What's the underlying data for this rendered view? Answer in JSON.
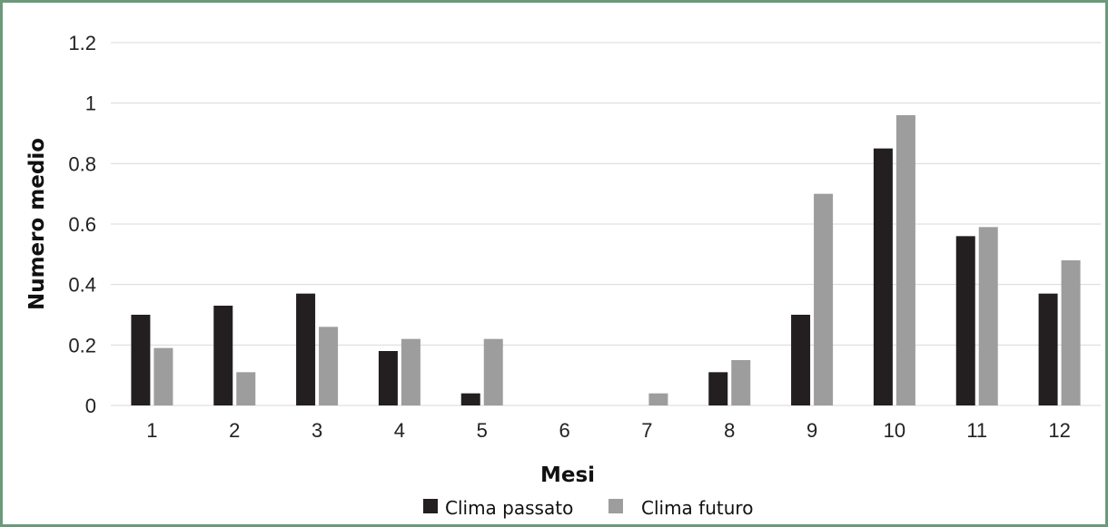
{
  "chart_data": {
    "type": "bar",
    "categories": [
      "1",
      "2",
      "3",
      "4",
      "5",
      "6",
      "7",
      "8",
      "9",
      "10",
      "11",
      "12"
    ],
    "series": [
      {
        "name": "Clima passato",
        "color": "#231f20",
        "values": [
          0.3,
          0.33,
          0.37,
          0.18,
          0.04,
          0,
          0,
          0.11,
          0.3,
          0.85,
          0.56,
          0.37
        ]
      },
      {
        "name": "Clima futuro",
        "color": "#9d9d9d",
        "values": [
          0.19,
          0.11,
          0.26,
          0.22,
          0.22,
          0,
          0.04,
          0.15,
          0.7,
          0.96,
          0.59,
          0.48
        ]
      }
    ],
    "y_ticks": [
      "0",
      "0.2",
      "0.4",
      "0.6",
      "0.8",
      "1",
      "1.2"
    ],
    "ylim": [
      0,
      1.2
    ],
    "xlabel": "Mesi",
    "ylabel": "Numero medio",
    "grid": true,
    "legend_position": "bottom"
  },
  "colors": {
    "frame_border": "#6a9a7a",
    "gridline": "#d9d9d9"
  }
}
